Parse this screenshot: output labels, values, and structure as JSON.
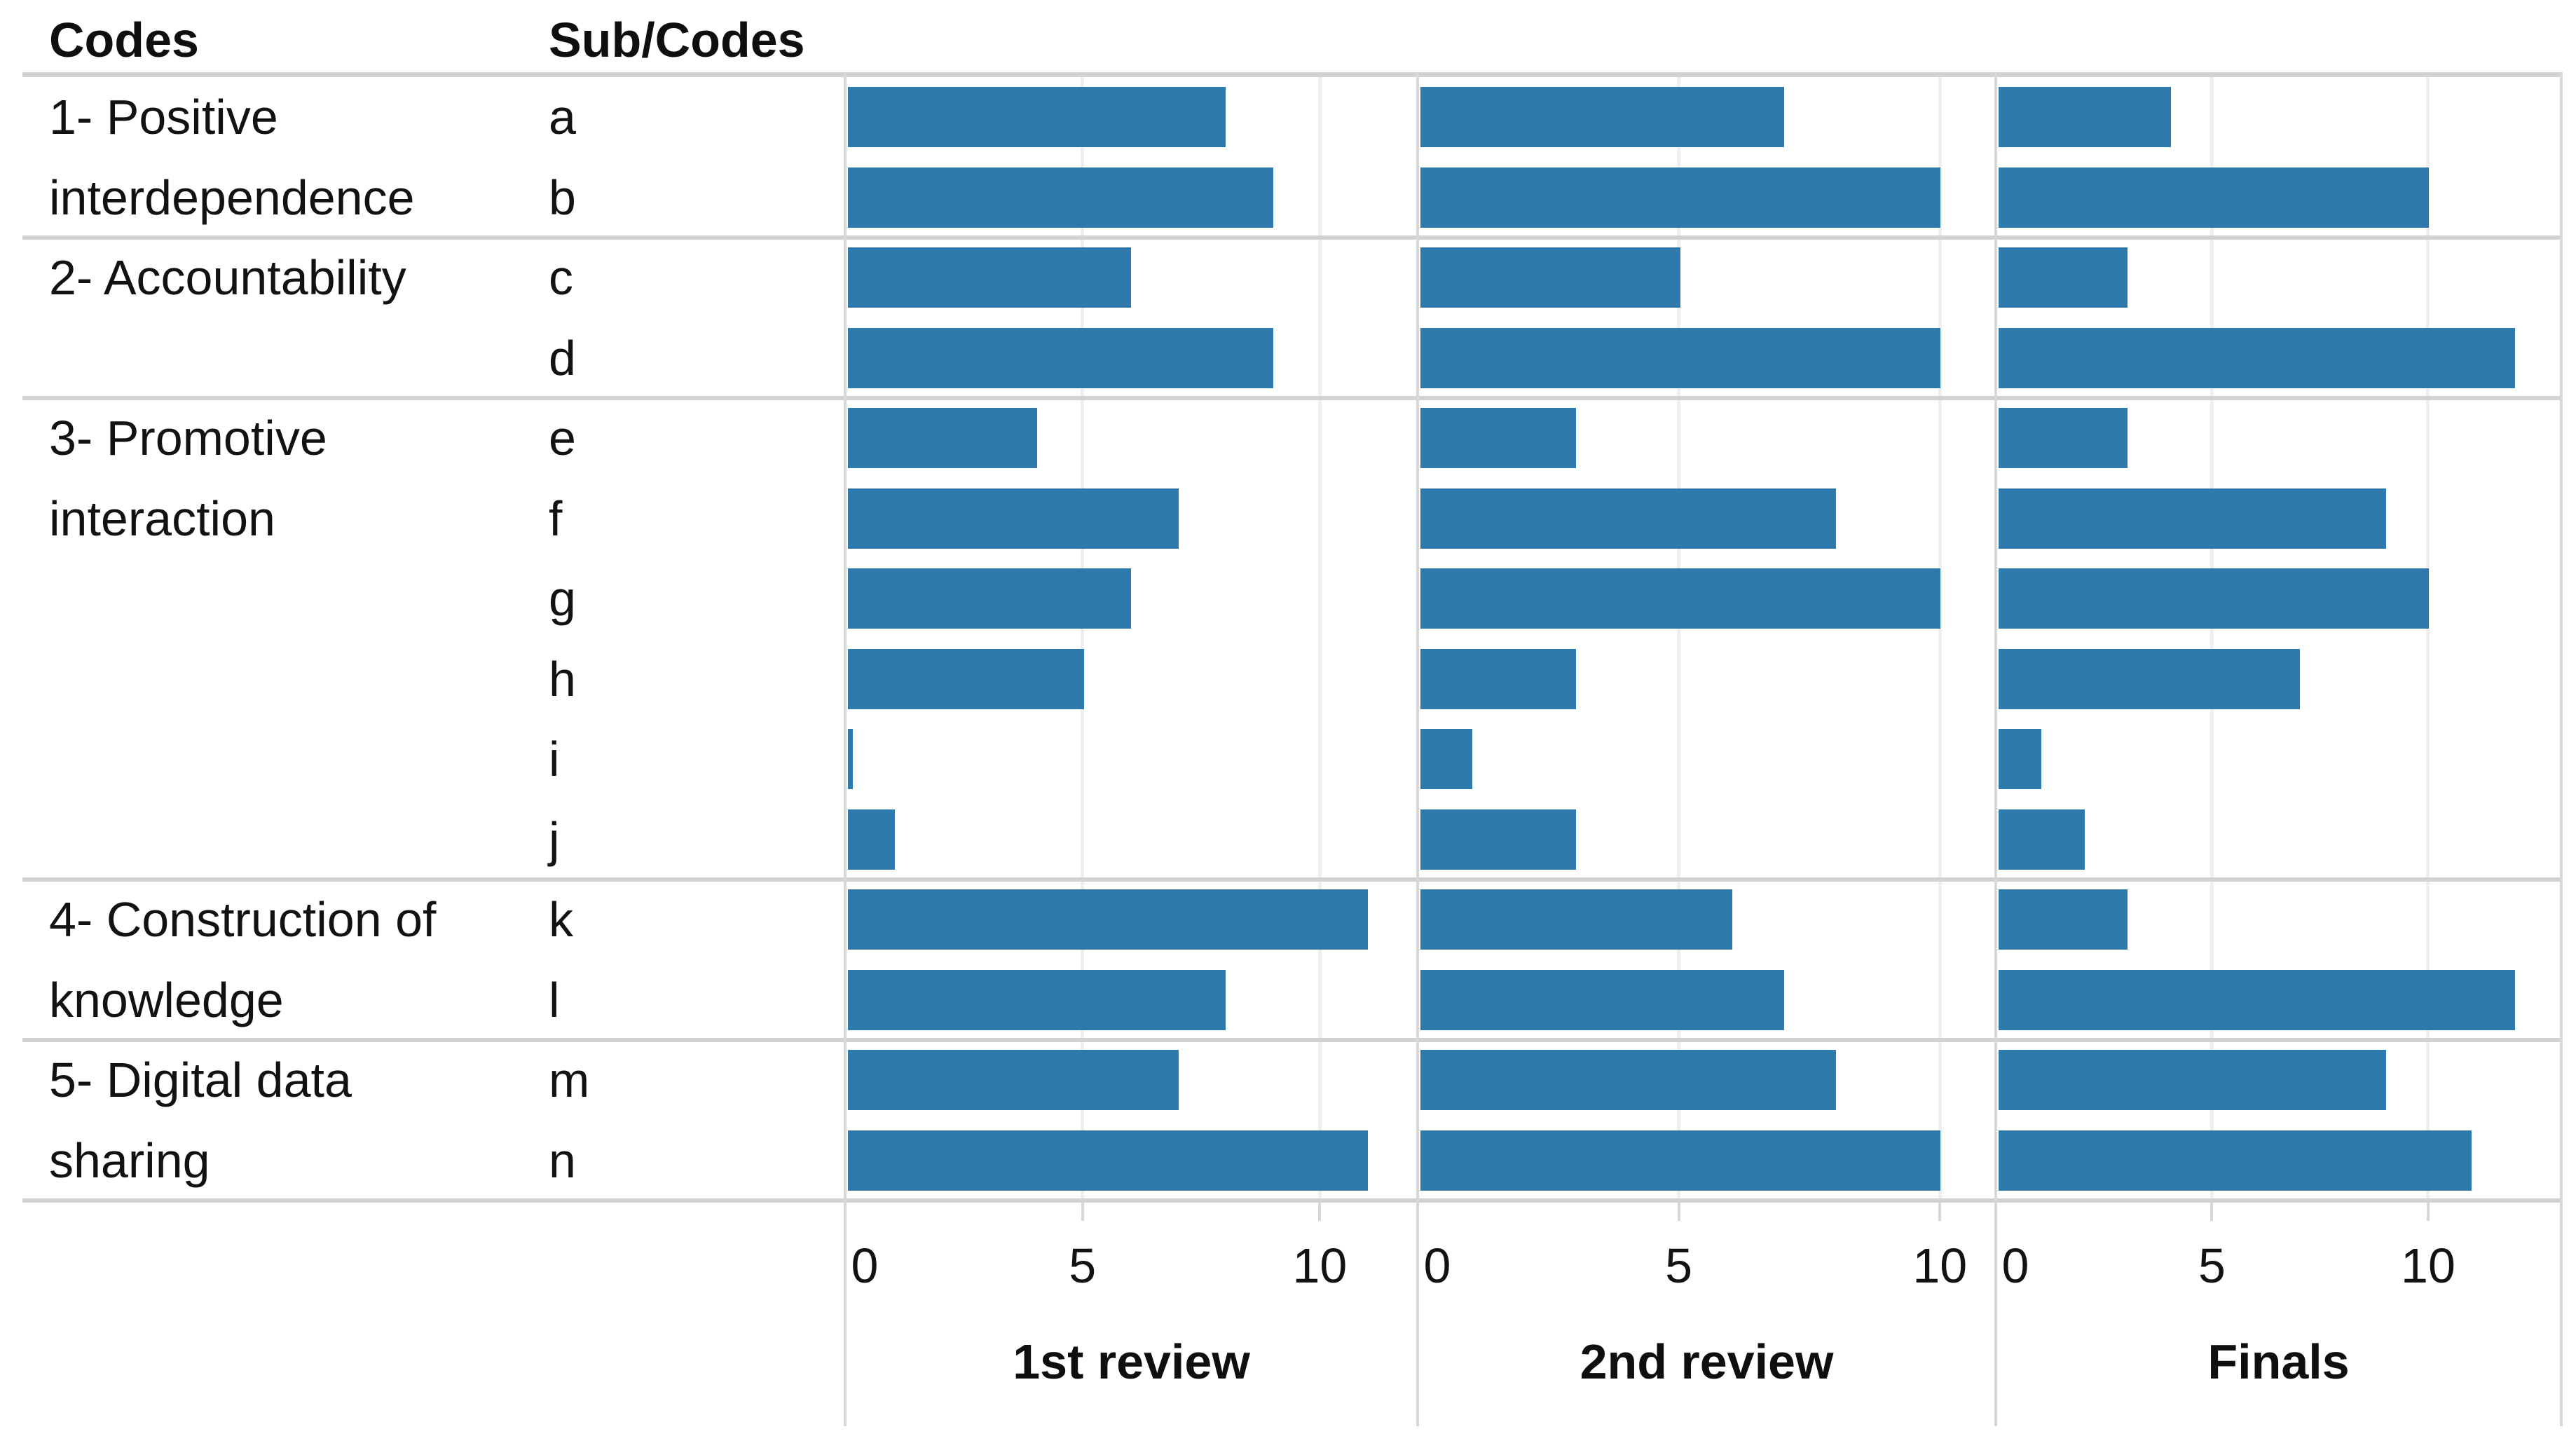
{
  "chart_data": {
    "type": "bar",
    "orientation": "horizontal",
    "column_headers": {
      "codes": "Codes",
      "subcodes": "Sub/Codes"
    },
    "groups": [
      {
        "code": "1- Positive interdependence",
        "label_lines": [
          "1- Positive",
          "interdependence"
        ],
        "subcodes": [
          "a",
          "b"
        ]
      },
      {
        "code": "2- Accountability",
        "label_lines": [
          "2- Accountability"
        ],
        "subcodes": [
          "c",
          "d"
        ]
      },
      {
        "code": "3- Promotive interaction",
        "label_lines": [
          "3- Promotive",
          "interaction"
        ],
        "subcodes": [
          "e",
          "f",
          "g",
          "h",
          "i",
          "j"
        ]
      },
      {
        "code": "4- Construction of knowledge",
        "label_lines": [
          "4- Construction of",
          "knowledge"
        ],
        "subcodes": [
          "k",
          "l"
        ]
      },
      {
        "code": "5- Digital data sharing",
        "label_lines": [
          "5- Digital data",
          "sharing"
        ],
        "subcodes": [
          "m",
          "n"
        ]
      }
    ],
    "categories": [
      "a",
      "b",
      "c",
      "d",
      "e",
      "f",
      "g",
      "h",
      "i",
      "j",
      "k",
      "l",
      "m",
      "n"
    ],
    "panels": [
      {
        "title": "1st review",
        "axis_ticks": [
          0,
          5,
          10
        ],
        "axis_max": 12.06,
        "values": {
          "a": 8,
          "b": 9,
          "c": 6,
          "d": 9,
          "e": 4,
          "f": 7,
          "g": 6,
          "h": 5,
          "i": 0.1,
          "j": 1,
          "k": 11,
          "l": 8,
          "m": 7,
          "n": 11
        }
      },
      {
        "title": "2nd review",
        "axis_ticks": [
          0,
          5,
          10
        ],
        "axis_max": 11.07,
        "values": {
          "a": 7,
          "b": 10,
          "c": 5,
          "d": 10,
          "e": 3,
          "f": 8,
          "g": 10,
          "h": 3,
          "i": 1,
          "j": 3,
          "k": 6,
          "l": 7,
          "m": 8,
          "n": 10
        }
      },
      {
        "title": "Finals",
        "axis_ticks": [
          0,
          5,
          10
        ],
        "axis_max": 13.08,
        "values": {
          "a": 4,
          "b": 10,
          "c": 3,
          "d": 12,
          "e": 3,
          "f": 9,
          "g": 10,
          "h": 7,
          "i": 1,
          "j": 2,
          "k": 3,
          "l": 12,
          "m": 9,
          "n": 11
        }
      }
    ],
    "legend": "none",
    "grid": "vertical lines at 5 and 10 per panel",
    "colors": {
      "bar": "#2E7AAC",
      "separator_line": "#d2d2d2",
      "panel_border": "#d8d8d8",
      "grid_line": "#efefef",
      "text": "#121212"
    }
  }
}
